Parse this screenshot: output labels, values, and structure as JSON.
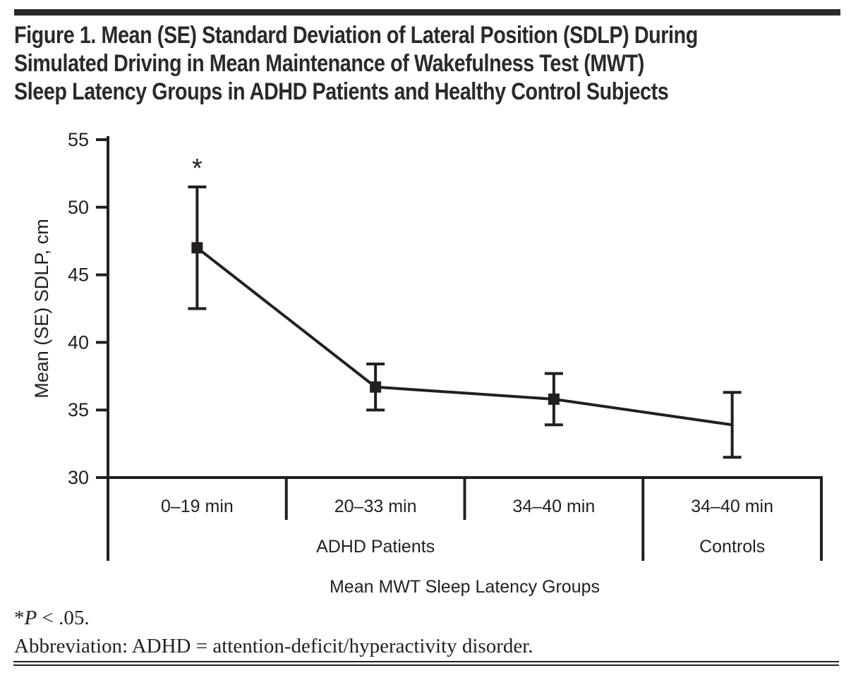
{
  "colors": {
    "ink": "#231f20",
    "rule": "#2a2a2a",
    "background": "#ffffff"
  },
  "figure": {
    "title_lines": [
      "Figure 1. Mean (SE) Standard Deviation of Lateral Position (SDLP) During",
      "Simulated Driving in Mean Maintenance of Wakefulness Test (MWT)",
      "Sleep Latency Groups in ADHD Patients and Healthy Control Subjects"
    ]
  },
  "chart_data": {
    "type": "line",
    "title": "",
    "categories": [
      "0–19 min",
      "20–33 min",
      "34–40 min",
      "34–40 min"
    ],
    "group_labels": [
      {
        "label": "ADHD Patients",
        "from": 0,
        "to": 2
      },
      {
        "label": "Controls",
        "from": 3,
        "to": 3
      }
    ],
    "values": [
      47.0,
      36.7,
      35.8,
      33.9
    ],
    "se": [
      4.5,
      1.7,
      1.9,
      2.4
    ],
    "markers": [
      true,
      true,
      true,
      false
    ],
    "annotations": [
      {
        "index": 0,
        "text": "*"
      }
    ],
    "ylabel": "Mean (SE) SDLP, cm",
    "xlabel": "Mean MWT Sleep Latency Groups",
    "ylim": [
      30,
      55
    ],
    "yticks": [
      30,
      35,
      40,
      45,
      50,
      55
    ],
    "grid": false,
    "legend": "none",
    "marker_shape": "filled-square",
    "line_color": "#231f20"
  },
  "footnotes": {
    "sig_star": "*",
    "sig_p": "P",
    "sig_rest": " < .05.",
    "abbreviation": "Abbreviation: ADHD = attention-deficit/hyperactivity disorder."
  }
}
